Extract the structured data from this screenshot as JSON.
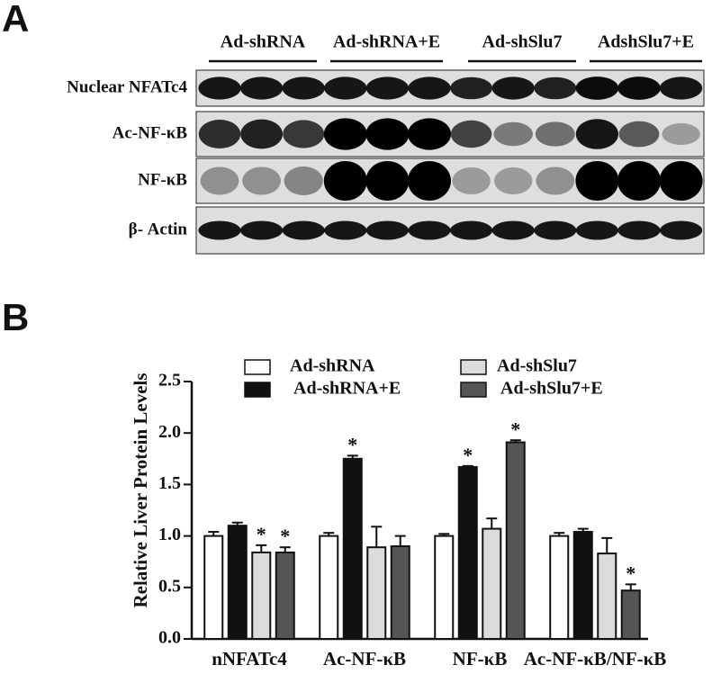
{
  "panel_labels": [
    "A",
    "B"
  ],
  "blot": {
    "groups": [
      "Ad-shRNA",
      "Ad-shRNA+E",
      "Ad-shSlu7",
      "AdshSlu7+E"
    ],
    "rows": [
      "Nuclear NFATc4",
      "Ac-NF-κB",
      "NF-κB",
      "β- Actin"
    ]
  },
  "chart_data": {
    "type": "bar",
    "y_label": "Relative  Liver Protein Levels",
    "categories": [
      "nNFATc4",
      "Ac-NF-κB",
      "NF-κB",
      "Ac-NF-κB/NF-κB"
    ],
    "series": [
      {
        "name": "Ad-shRNA",
        "color": "#ffffff",
        "values": [
          1.0,
          1.0,
          1.0,
          1.0
        ],
        "errors": [
          0.04,
          0.03,
          0.02,
          0.03
        ],
        "markers": [
          null,
          null,
          null,
          null
        ]
      },
      {
        "name": "Ad-shRNA+E",
        "color": "#111111",
        "values": [
          1.1,
          1.75,
          1.67,
          1.04
        ],
        "errors": [
          0.03,
          0.03,
          0.01,
          0.03
        ],
        "markers": [
          null,
          "*",
          "*",
          null
        ]
      },
      {
        "name": "Ad-shSlu7",
        "color": "#dcdcdc",
        "values": [
          0.84,
          0.89,
          1.07,
          0.83
        ],
        "errors": [
          0.07,
          0.2,
          0.1,
          0.15
        ],
        "markers": [
          "*",
          null,
          null,
          null
        ]
      },
      {
        "name": "Ad-shSlu7+E",
        "color": "#555555",
        "values": [
          0.84,
          0.9,
          1.91,
          0.47
        ],
        "errors": [
          0.05,
          0.1,
          0.02,
          0.06
        ],
        "markers": [
          "*",
          null,
          "*",
          "*"
        ]
      }
    ],
    "ylim": [
      0,
      2.5
    ],
    "yticks": [
      {
        "value": 0,
        "label": "0.0"
      },
      {
        "value": 0.5,
        "label": "0.5"
      },
      {
        "value": 1,
        "label": "1.0"
      },
      {
        "value": 1.5,
        "label": "1.5"
      },
      {
        "value": 2,
        "label": "2.0"
      },
      {
        "value": 2.5,
        "label": "2.5"
      }
    ]
  }
}
